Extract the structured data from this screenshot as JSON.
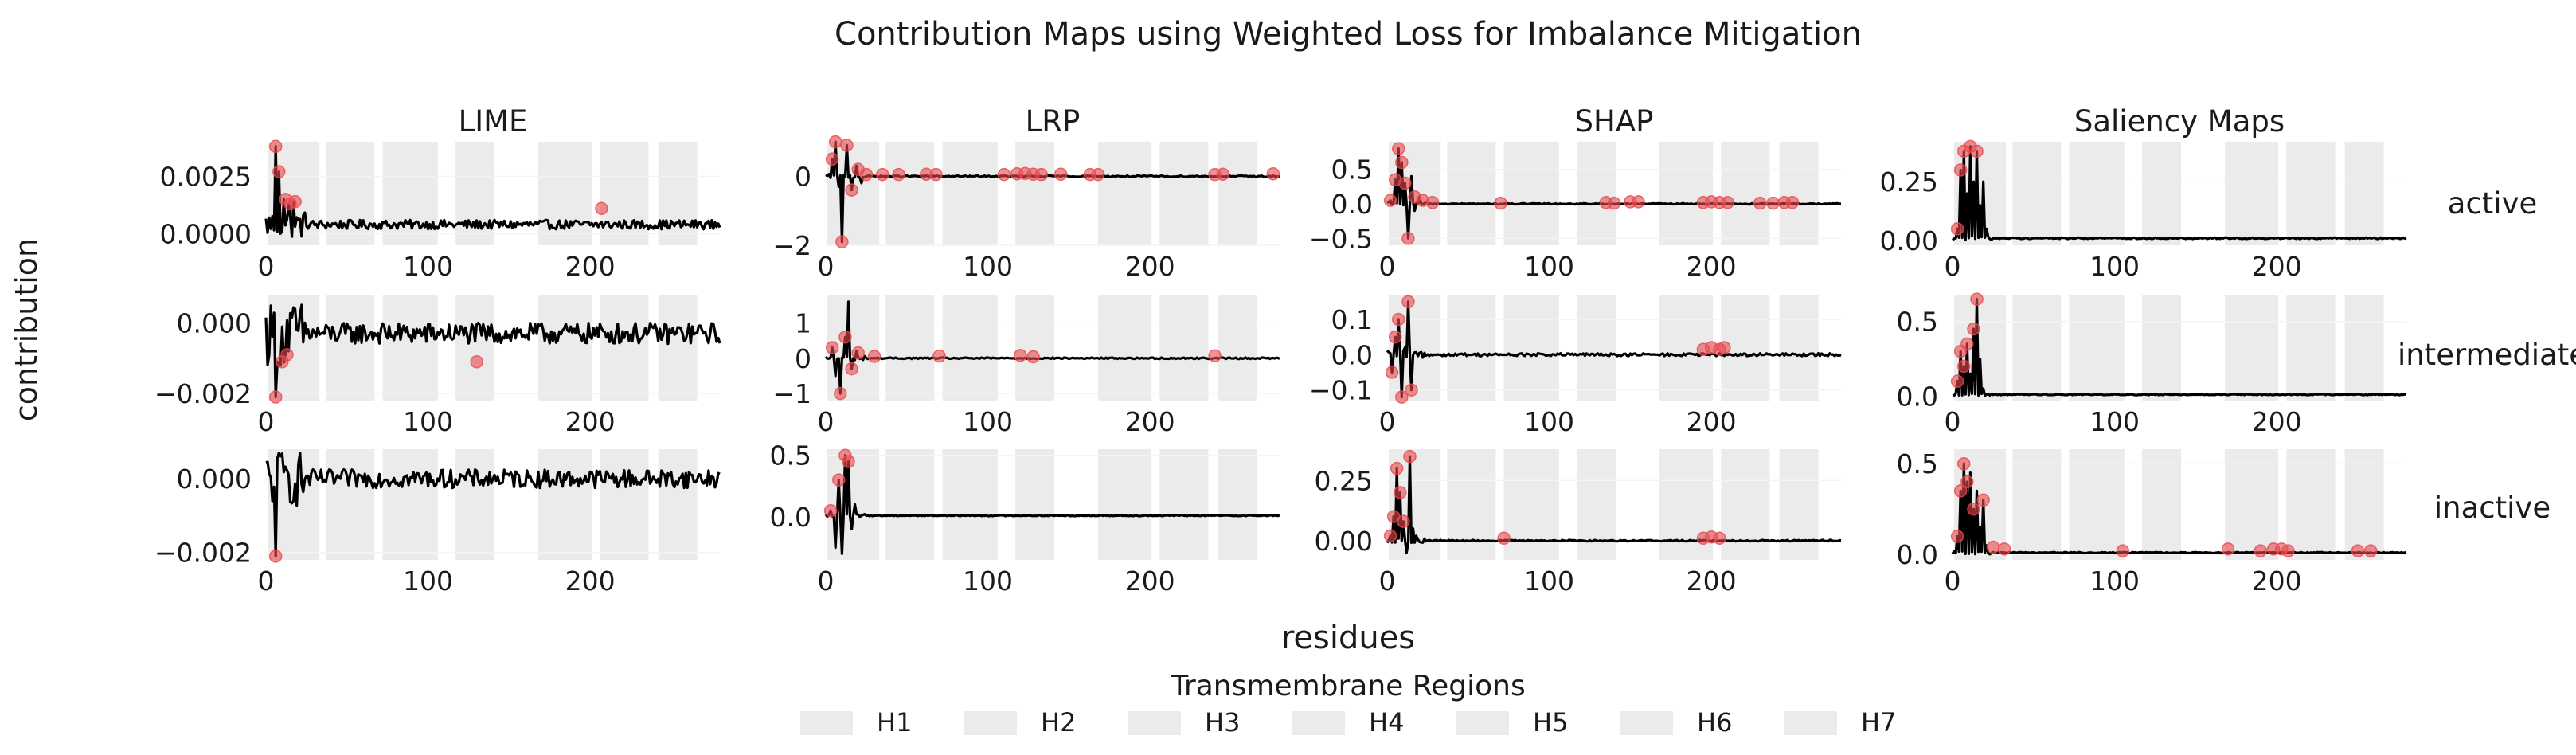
{
  "title": "Contribution Maps using Weighted Loss for Imbalance Mitigation",
  "columns": [
    "LIME",
    "LRP",
    "SHAP",
    "Saliency Maps"
  ],
  "rows": [
    "active",
    "intermediate",
    "inactive"
  ],
  "xlabel": "residues",
  "ylabel": "contribution",
  "legend": {
    "title": "Transmembrane Regions",
    "items": [
      "H1",
      "H2",
      "H3",
      "H4",
      "H5",
      "H6",
      "H7"
    ]
  },
  "colors": {
    "line": "#000000",
    "highlight": "#e8474c",
    "band": "#ebebeb"
  },
  "chart_data": {
    "type": "line",
    "x_range": [
      0,
      280
    ],
    "x_ticks": [
      0,
      100,
      200
    ],
    "x_tick_labels": [
      "0",
      "100",
      "200"
    ],
    "transmembrane_regions": [
      {
        "name": "H1",
        "start": 1,
        "end": 33
      },
      {
        "name": "H2",
        "start": 37,
        "end": 67
      },
      {
        "name": "H3",
        "start": 72,
        "end": 106
      },
      {
        "name": "H4",
        "start": 117,
        "end": 141
      },
      {
        "name": "H5",
        "start": 168,
        "end": 201
      },
      {
        "name": "H6",
        "start": 206,
        "end": 236
      },
      {
        "name": "H7",
        "start": 242,
        "end": 266
      }
    ],
    "panels": [
      {
        "method": "LIME",
        "condition": "active",
        "ylim": [
          -0.0005,
          0.004
        ],
        "yticks": [
          0,
          0.0025
        ],
        "ytick_labels": [
          "0.0000",
          "0.0025"
        ],
        "spikes": [
          {
            "x": 6,
            "y": 0.0038
          },
          {
            "x": 8,
            "y": 0.0027
          },
          {
            "x": 11,
            "y": 0.0015
          },
          {
            "x": 14,
            "y": 0.0013
          },
          {
            "x": 17,
            "y": 0.0014
          }
        ],
        "noise": 0.0002,
        "baseline": 0.0004,
        "highlights": [
          {
            "x": 6,
            "y": 0.0038
          },
          {
            "x": 8,
            "y": 0.0027
          },
          {
            "x": 12,
            "y": 0.0015
          },
          {
            "x": 15,
            "y": 0.0013
          },
          {
            "x": 18,
            "y": 0.0014
          },
          {
            "x": 207,
            "y": 0.0011
          }
        ]
      },
      {
        "method": "LIME",
        "condition": "intermediate",
        "ylim": [
          -0.0022,
          0.0008
        ],
        "yticks": [
          -0.002,
          0
        ],
        "ytick_labels": [
          "−0.002",
          "0.000"
        ],
        "spikes": [
          {
            "x": 6,
            "y": -0.0021
          },
          {
            "x": 9,
            "y": -0.0012
          },
          {
            "x": 12,
            "y": -0.0009
          }
        ],
        "noise": 0.0003,
        "baseline": -0.0003,
        "highlights": [
          {
            "x": 6,
            "y": -0.0021
          },
          {
            "x": 10,
            "y": -0.0011
          },
          {
            "x": 13,
            "y": -0.0009
          },
          {
            "x": 130,
            "y": -0.0011
          }
        ]
      },
      {
        "method": "LIME",
        "condition": "inactive",
        "ylim": [
          -0.0022,
          0.0008
        ],
        "yticks": [
          -0.002,
          0
        ],
        "ytick_labels": [
          "−0.002",
          "0.000"
        ],
        "spikes": [
          {
            "x": 6,
            "y": -0.0021
          },
          {
            "x": 8,
            "y": 0.0007
          }
        ],
        "noise": 0.00025,
        "baseline": 0.0,
        "highlights": [
          {
            "x": 6,
            "y": -0.0021
          }
        ]
      },
      {
        "method": "LRP",
        "condition": "active",
        "ylim": [
          -2,
          1
        ],
        "yticks": [
          -2,
          0
        ],
        "ytick_labels": [
          "−2",
          "0"
        ],
        "spikes": [
          {
            "x": 4,
            "y": 0.5
          },
          {
            "x": 6,
            "y": 1.2
          },
          {
            "x": 8,
            "y": -0.3
          },
          {
            "x": 10,
            "y": -1.9
          },
          {
            "x": 13,
            "y": 0.9
          },
          {
            "x": 16,
            "y": -0.4
          },
          {
            "x": 19,
            "y": 0.3
          },
          {
            "x": 22,
            "y": -0.2
          }
        ],
        "noise": 0.02,
        "baseline": 0.0,
        "highlights": [
          {
            "x": 4,
            "y": 0.5
          },
          {
            "x": 6,
            "y": 1.2
          },
          {
            "x": 10,
            "y": -1.9
          },
          {
            "x": 13,
            "y": 0.9
          },
          {
            "x": 16,
            "y": -0.4
          },
          {
            "x": 20,
            "y": 0.2
          },
          {
            "x": 25,
            "y": 0.05
          },
          {
            "x": 35,
            "y": 0.05
          },
          {
            "x": 45,
            "y": 0.05
          },
          {
            "x": 62,
            "y": 0.06
          },
          {
            "x": 68,
            "y": 0.05
          },
          {
            "x": 110,
            "y": 0.05
          },
          {
            "x": 118,
            "y": 0.07
          },
          {
            "x": 123,
            "y": 0.08
          },
          {
            "x": 128,
            "y": 0.06
          },
          {
            "x": 133,
            "y": 0.05
          },
          {
            "x": 145,
            "y": 0.06
          },
          {
            "x": 163,
            "y": 0.05
          },
          {
            "x": 168,
            "y": 0.05
          },
          {
            "x": 240,
            "y": 0.05
          },
          {
            "x": 245,
            "y": 0.06
          },
          {
            "x": 276,
            "y": 0.07
          }
        ]
      },
      {
        "method": "LRP",
        "condition": "intermediate",
        "ylim": [
          -1.2,
          1.8
        ],
        "yticks": [
          -1,
          0,
          1
        ],
        "ytick_labels": [
          "−1",
          "0",
          "1"
        ],
        "spikes": [
          {
            "x": 4,
            "y": 0.3
          },
          {
            "x": 6,
            "y": -0.5
          },
          {
            "x": 9,
            "y": -1.0
          },
          {
            "x": 12,
            "y": 0.6
          },
          {
            "x": 14,
            "y": 1.6
          },
          {
            "x": 16,
            "y": -0.3
          },
          {
            "x": 19,
            "y": 0.2
          }
        ],
        "noise": 0.02,
        "baseline": 0.0,
        "highlights": [
          {
            "x": 4,
            "y": 0.3
          },
          {
            "x": 9,
            "y": -1.0
          },
          {
            "x": 12,
            "y": 0.6
          },
          {
            "x": 16,
            "y": -0.3
          },
          {
            "x": 20,
            "y": 0.15
          },
          {
            "x": 30,
            "y": 0.05
          },
          {
            "x": 70,
            "y": 0.06
          },
          {
            "x": 120,
            "y": 0.08
          },
          {
            "x": 128,
            "y": 0.04
          },
          {
            "x": 240,
            "y": 0.07
          }
        ]
      },
      {
        "method": "LRP",
        "condition": "inactive",
        "ylim": [
          -0.35,
          0.55
        ],
        "yticks": [
          0,
          0.5
        ],
        "ytick_labels": [
          "0.0",
          "0.5"
        ],
        "spikes": [
          {
            "x": 3,
            "y": 0.05
          },
          {
            "x": 6,
            "y": -0.25
          },
          {
            "x": 8,
            "y": 0.3
          },
          {
            "x": 10,
            "y": -0.3
          },
          {
            "x": 12,
            "y": 0.5
          },
          {
            "x": 14,
            "y": 0.45
          },
          {
            "x": 16,
            "y": -0.1
          },
          {
            "x": 18,
            "y": 0.1
          }
        ],
        "noise": 0.004,
        "baseline": 0.01,
        "highlights": [
          {
            "x": 3,
            "y": 0.05
          },
          {
            "x": 8,
            "y": 0.3
          },
          {
            "x": 12,
            "y": 0.5
          },
          {
            "x": 14,
            "y": 0.45
          }
        ]
      },
      {
        "method": "SHAP",
        "condition": "active",
        "ylim": [
          -0.6,
          0.9
        ],
        "yticks": [
          -0.5,
          0,
          0.5
        ],
        "ytick_labels": [
          "−0.5",
          "0.0",
          "0.5"
        ],
        "spikes": [
          {
            "x": 2,
            "y": 0.05
          },
          {
            "x": 5,
            "y": 0.35
          },
          {
            "x": 7,
            "y": 0.8
          },
          {
            "x": 9,
            "y": 0.6
          },
          {
            "x": 11,
            "y": 0.3
          },
          {
            "x": 13,
            "y": -0.5
          },
          {
            "x": 15,
            "y": 0.4
          },
          {
            "x": 17,
            "y": -0.1
          },
          {
            "x": 20,
            "y": 0.1
          }
        ],
        "noise": 0.008,
        "baseline": 0.0,
        "highlights": [
          {
            "x": 2,
            "y": 0.05
          },
          {
            "x": 5,
            "y": 0.35
          },
          {
            "x": 7,
            "y": 0.8
          },
          {
            "x": 9,
            "y": 0.6
          },
          {
            "x": 11,
            "y": 0.3
          },
          {
            "x": 13,
            "y": -0.5
          },
          {
            "x": 17,
            "y": 0.1
          },
          {
            "x": 22,
            "y": 0.05
          },
          {
            "x": 28,
            "y": 0.02
          },
          {
            "x": 70,
            "y": 0.01
          },
          {
            "x": 135,
            "y": 0.02
          },
          {
            "x": 140,
            "y": 0.01
          },
          {
            "x": 150,
            "y": 0.03
          },
          {
            "x": 155,
            "y": 0.03
          },
          {
            "x": 195,
            "y": 0.02
          },
          {
            "x": 200,
            "y": 0.03
          },
          {
            "x": 205,
            "y": 0.02
          },
          {
            "x": 210,
            "y": 0.02
          },
          {
            "x": 230,
            "y": 0.01
          },
          {
            "x": 238,
            "y": 0.01
          },
          {
            "x": 245,
            "y": 0.02
          },
          {
            "x": 250,
            "y": 0.02
          }
        ]
      },
      {
        "method": "SHAP",
        "condition": "intermediate",
        "ylim": [
          -0.13,
          0.17
        ],
        "yticks": [
          -0.1,
          0,
          0.1
        ],
        "ytick_labels": [
          "−0.1",
          "0.0",
          "0.1"
        ],
        "spikes": [
          {
            "x": 3,
            "y": -0.05
          },
          {
            "x": 5,
            "y": 0.05
          },
          {
            "x": 7,
            "y": 0.1
          },
          {
            "x": 9,
            "y": -0.12
          },
          {
            "x": 11,
            "y": 0.02
          },
          {
            "x": 13,
            "y": 0.15
          },
          {
            "x": 15,
            "y": -0.1
          }
        ],
        "noise": 0.004,
        "baseline": 0.0,
        "highlights": [
          {
            "x": 3,
            "y": -0.05
          },
          {
            "x": 5,
            "y": 0.05
          },
          {
            "x": 7,
            "y": 0.1
          },
          {
            "x": 9,
            "y": -0.12
          },
          {
            "x": 13,
            "y": 0.15
          },
          {
            "x": 15,
            "y": -0.1
          },
          {
            "x": 195,
            "y": 0.015
          },
          {
            "x": 200,
            "y": 0.02
          },
          {
            "x": 205,
            "y": 0.015
          },
          {
            "x": 208,
            "y": 0.02
          }
        ]
      },
      {
        "method": "SHAP",
        "condition": "inactive",
        "ylim": [
          -0.08,
          0.38
        ],
        "yticks": [
          0,
          0.25
        ],
        "ytick_labels": [
          "0.00",
          "0.25"
        ],
        "spikes": [
          {
            "x": 2,
            "y": 0.02
          },
          {
            "x": 4,
            "y": 0.1
          },
          {
            "x": 6,
            "y": 0.3
          },
          {
            "x": 8,
            "y": 0.2
          },
          {
            "x": 10,
            "y": 0.08
          },
          {
            "x": 12,
            "y": -0.05
          },
          {
            "x": 14,
            "y": 0.35
          },
          {
            "x": 16,
            "y": 0.05
          },
          {
            "x": 18,
            "y": 0.02
          }
        ],
        "noise": 0.003,
        "baseline": 0.0,
        "highlights": [
          {
            "x": 2,
            "y": 0.02
          },
          {
            "x": 4,
            "y": 0.1
          },
          {
            "x": 6,
            "y": 0.3
          },
          {
            "x": 8,
            "y": 0.2
          },
          {
            "x": 10,
            "y": 0.08
          },
          {
            "x": 14,
            "y": 0.35
          },
          {
            "x": 72,
            "y": 0.01
          },
          {
            "x": 195,
            "y": 0.01
          },
          {
            "x": 200,
            "y": 0.015
          },
          {
            "x": 205,
            "y": 0.01
          }
        ]
      },
      {
        "method": "Saliency Maps",
        "condition": "active",
        "ylim": [
          -0.02,
          0.42
        ],
        "yticks": [
          0,
          0.25
        ],
        "ytick_labels": [
          "0.00",
          "0.25"
        ],
        "spikes": [
          {
            "x": 3,
            "y": 0.05
          },
          {
            "x": 5,
            "y": 0.3
          },
          {
            "x": 7,
            "y": 0.38
          },
          {
            "x": 9,
            "y": 0.2
          },
          {
            "x": 11,
            "y": 0.4
          },
          {
            "x": 13,
            "y": 0.25
          },
          {
            "x": 15,
            "y": 0.38
          },
          {
            "x": 17,
            "y": 0.15
          },
          {
            "x": 19,
            "y": 0.25
          },
          {
            "x": 21,
            "y": 0.05
          }
        ],
        "noise": 0.003,
        "baseline": 0.01,
        "highlights": [
          {
            "x": 3,
            "y": 0.05
          },
          {
            "x": 5,
            "y": 0.3
          },
          {
            "x": 7,
            "y": 0.38
          },
          {
            "x": 11,
            "y": 0.4
          },
          {
            "x": 15,
            "y": 0.38
          }
        ]
      },
      {
        "method": "Saliency Maps",
        "condition": "intermediate",
        "ylim": [
          -0.03,
          0.68
        ],
        "yticks": [
          0,
          0.5
        ],
        "ytick_labels": [
          "0.0",
          "0.5"
        ],
        "spikes": [
          {
            "x": 3,
            "y": 0.1
          },
          {
            "x": 5,
            "y": 0.3
          },
          {
            "x": 7,
            "y": 0.2
          },
          {
            "x": 9,
            "y": 0.35
          },
          {
            "x": 11,
            "y": 0.15
          },
          {
            "x": 13,
            "y": 0.45
          },
          {
            "x": 15,
            "y": 0.65
          },
          {
            "x": 17,
            "y": 0.25
          },
          {
            "x": 19,
            "y": 0.05
          }
        ],
        "noise": 0.003,
        "baseline": 0.01,
        "highlights": [
          {
            "x": 3,
            "y": 0.1
          },
          {
            "x": 5,
            "y": 0.3
          },
          {
            "x": 7,
            "y": 0.2
          },
          {
            "x": 9,
            "y": 0.35
          },
          {
            "x": 13,
            "y": 0.45
          },
          {
            "x": 15,
            "y": 0.65
          }
        ]
      },
      {
        "method": "Saliency Maps",
        "condition": "inactive",
        "ylim": [
          -0.03,
          0.58
        ],
        "yticks": [
          0,
          0.5
        ],
        "ytick_labels": [
          "0.0",
          "0.5"
        ],
        "spikes": [
          {
            "x": 3,
            "y": 0.1
          },
          {
            "x": 5,
            "y": 0.35
          },
          {
            "x": 7,
            "y": 0.5
          },
          {
            "x": 9,
            "y": 0.4
          },
          {
            "x": 11,
            "y": 0.45
          },
          {
            "x": 13,
            "y": 0.25
          },
          {
            "x": 15,
            "y": 0.35
          },
          {
            "x": 17,
            "y": 0.15
          },
          {
            "x": 19,
            "y": 0.3
          },
          {
            "x": 21,
            "y": 0.05
          }
        ],
        "noise": 0.003,
        "baseline": 0.01,
        "highlights": [
          {
            "x": 3,
            "y": 0.1
          },
          {
            "x": 5,
            "y": 0.35
          },
          {
            "x": 7,
            "y": 0.5
          },
          {
            "x": 9,
            "y": 0.4
          },
          {
            "x": 13,
            "y": 0.25
          },
          {
            "x": 19,
            "y": 0.3
          },
          {
            "x": 25,
            "y": 0.04
          },
          {
            "x": 32,
            "y": 0.03
          },
          {
            "x": 105,
            "y": 0.02
          },
          {
            "x": 170,
            "y": 0.03
          },
          {
            "x": 190,
            "y": 0.02
          },
          {
            "x": 198,
            "y": 0.03
          },
          {
            "x": 203,
            "y": 0.03
          },
          {
            "x": 207,
            "y": 0.02
          },
          {
            "x": 250,
            "y": 0.02
          },
          {
            "x": 258,
            "y": 0.02
          }
        ]
      }
    ]
  }
}
